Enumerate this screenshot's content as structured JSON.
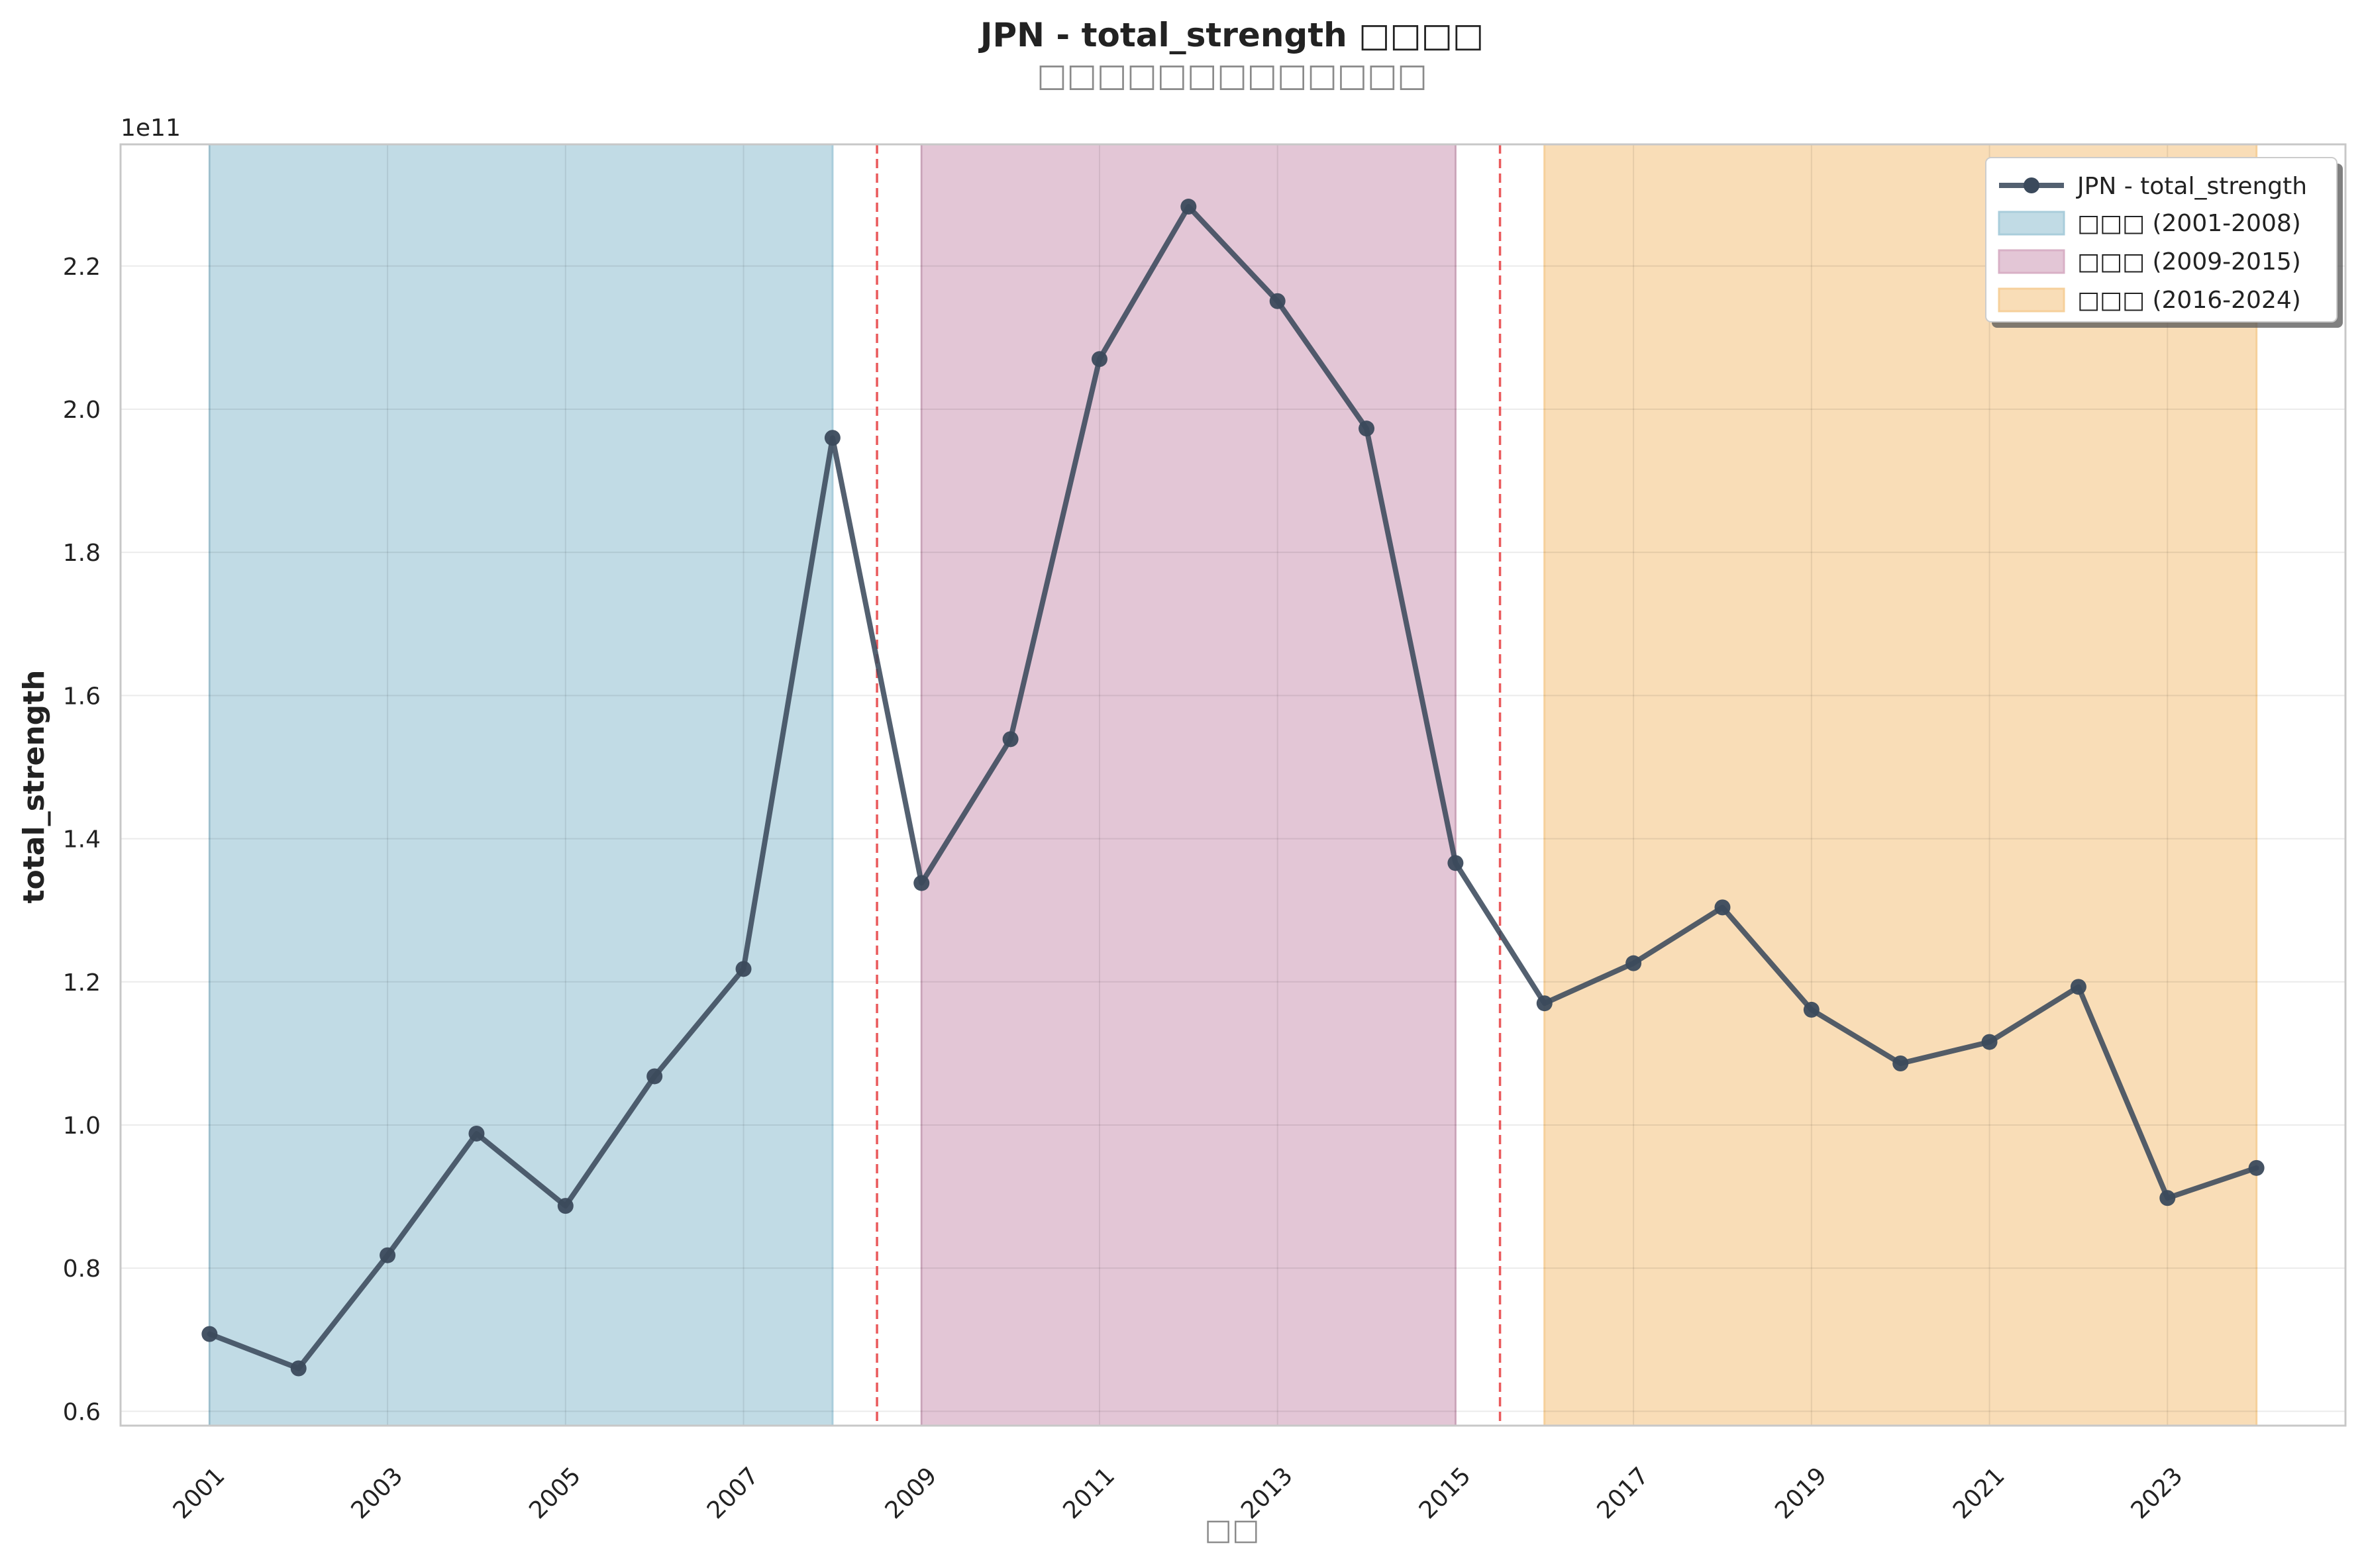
{
  "chart_data": {
    "type": "line",
    "title": "JPN - total_strength □□□□",
    "subtitle": "□□□□□□□□□□□□□",
    "xlabel": "□□",
    "ylabel": "total_strength",
    "y_offset_label": "1e11",
    "xlim": [
      2000,
      2025
    ],
    "ylim": [
      0.58,
      2.37
    ],
    "y_scale_multiplier": 100000000000.0,
    "x_ticks": [
      "2001",
      "2003",
      "2005",
      "2007",
      "2009",
      "2011",
      "2013",
      "2015",
      "2017",
      "2019",
      "2021",
      "2023"
    ],
    "y_ticks": [
      "0.6",
      "0.8",
      "1.0",
      "1.2",
      "1.4",
      "1.6",
      "1.8",
      "2.0",
      "2.2"
    ],
    "grid": true,
    "legend_position": "top-right",
    "series": [
      {
        "name": "JPN - total_strength",
        "color": "#3b4a5c",
        "x": [
          2001,
          2002,
          2003,
          2004,
          2005,
          2006,
          2007,
          2008,
          2009,
          2010,
          2011,
          2012,
          2013,
          2014,
          2015,
          2016,
          2017,
          2018,
          2019,
          2020,
          2021,
          2022,
          2023,
          2024
        ],
        "y": [
          0.708,
          0.66,
          0.818,
          0.988,
          0.887,
          1.068,
          1.218,
          1.96,
          1.338,
          1.539,
          2.07,
          2.283,
          2.151,
          1.973,
          1.366,
          1.17,
          1.226,
          1.304,
          1.161,
          1.086,
          1.116,
          1.193,
          0.898,
          0.94
        ]
      }
    ],
    "periods": [
      {
        "label": "□□□ (2001-2008)",
        "start": 2001,
        "end": 2008,
        "color": "#a9cddb"
      },
      {
        "label": "□□□ (2009-2015)",
        "start": 2009,
        "end": 2015,
        "color": "#d8b0c6"
      },
      {
        "label": "□□□ (2016-2024)",
        "start": 2016,
        "end": 2024,
        "color": "#f6d09b"
      }
    ],
    "breakpoints": [
      2008.5,
      2015.5
    ],
    "breakpoint_color": "#e8484a"
  }
}
